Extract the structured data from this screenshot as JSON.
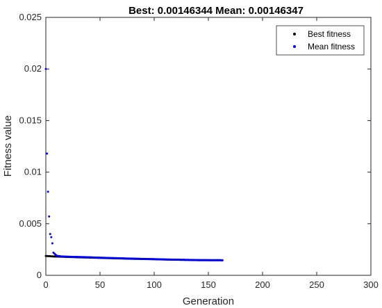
{
  "chart_data": {
    "type": "scatter",
    "title": "Best: 0.00146344 Mean: 0.00146347",
    "xlabel": "Generation",
    "ylabel": "Fitness value",
    "xlim": [
      0,
      300
    ],
    "ylim": [
      0,
      0.025
    ],
    "xticks": [
      "0",
      "50",
      "100",
      "150",
      "200",
      "250",
      "300"
    ],
    "yticks": [
      "0",
      "0.005",
      "0.01",
      "0.015",
      "0.02",
      "0.025"
    ],
    "grid": false,
    "legend_position": "top-right",
    "series": [
      {
        "name": "Best fitness",
        "color": "#000000",
        "points": [
          [
            0,
            0.00188
          ],
          [
            1,
            0.00187
          ],
          [
            2,
            0.00186
          ],
          [
            3,
            0.00186
          ],
          [
            4,
            0.00185
          ],
          [
            5,
            0.00184
          ],
          [
            6,
            0.00184
          ],
          [
            7,
            0.00183
          ],
          [
            8,
            0.00183
          ],
          [
            9,
            0.00182
          ],
          [
            10,
            0.00182
          ],
          [
            15,
            0.0018
          ],
          [
            20,
            0.00178
          ],
          [
            30,
            0.00175
          ],
          [
            40,
            0.00172
          ],
          [
            50,
            0.00169
          ],
          [
            60,
            0.00166
          ],
          [
            70,
            0.00163
          ],
          [
            80,
            0.0016
          ],
          [
            90,
            0.00158
          ],
          [
            100,
            0.00156
          ],
          [
            110,
            0.00153
          ],
          [
            120,
            0.00151
          ],
          [
            130,
            0.00149
          ],
          [
            140,
            0.00147
          ],
          [
            150,
            0.00147
          ],
          [
            163,
            0.00146
          ]
        ]
      },
      {
        "name": "Mean fitness",
        "color": "#0000ff",
        "points": [
          [
            0,
            0.02
          ],
          [
            1,
            0.0118
          ],
          [
            2,
            0.0081
          ],
          [
            3,
            0.0057
          ],
          [
            4,
            0.004
          ],
          [
            5,
            0.0037
          ],
          [
            6,
            0.0031
          ],
          [
            7,
            0.0022
          ],
          [
            8,
            0.0021
          ],
          [
            9,
            0.002
          ],
          [
            10,
            0.0019
          ],
          [
            12,
            0.00186
          ],
          [
            15,
            0.00183
          ],
          [
            20,
            0.00181
          ],
          [
            25,
            0.00179
          ],
          [
            30,
            0.00178
          ],
          [
            40,
            0.00175
          ],
          [
            50,
            0.00171
          ],
          [
            60,
            0.00168
          ],
          [
            70,
            0.00165
          ],
          [
            80,
            0.00162
          ],
          [
            90,
            0.00159
          ],
          [
            100,
            0.00157
          ],
          [
            110,
            0.00154
          ],
          [
            120,
            0.00152
          ],
          [
            130,
            0.0015
          ],
          [
            140,
            0.00148
          ],
          [
            150,
            0.00147
          ],
          [
            163,
            0.00146
          ]
        ]
      }
    ]
  }
}
